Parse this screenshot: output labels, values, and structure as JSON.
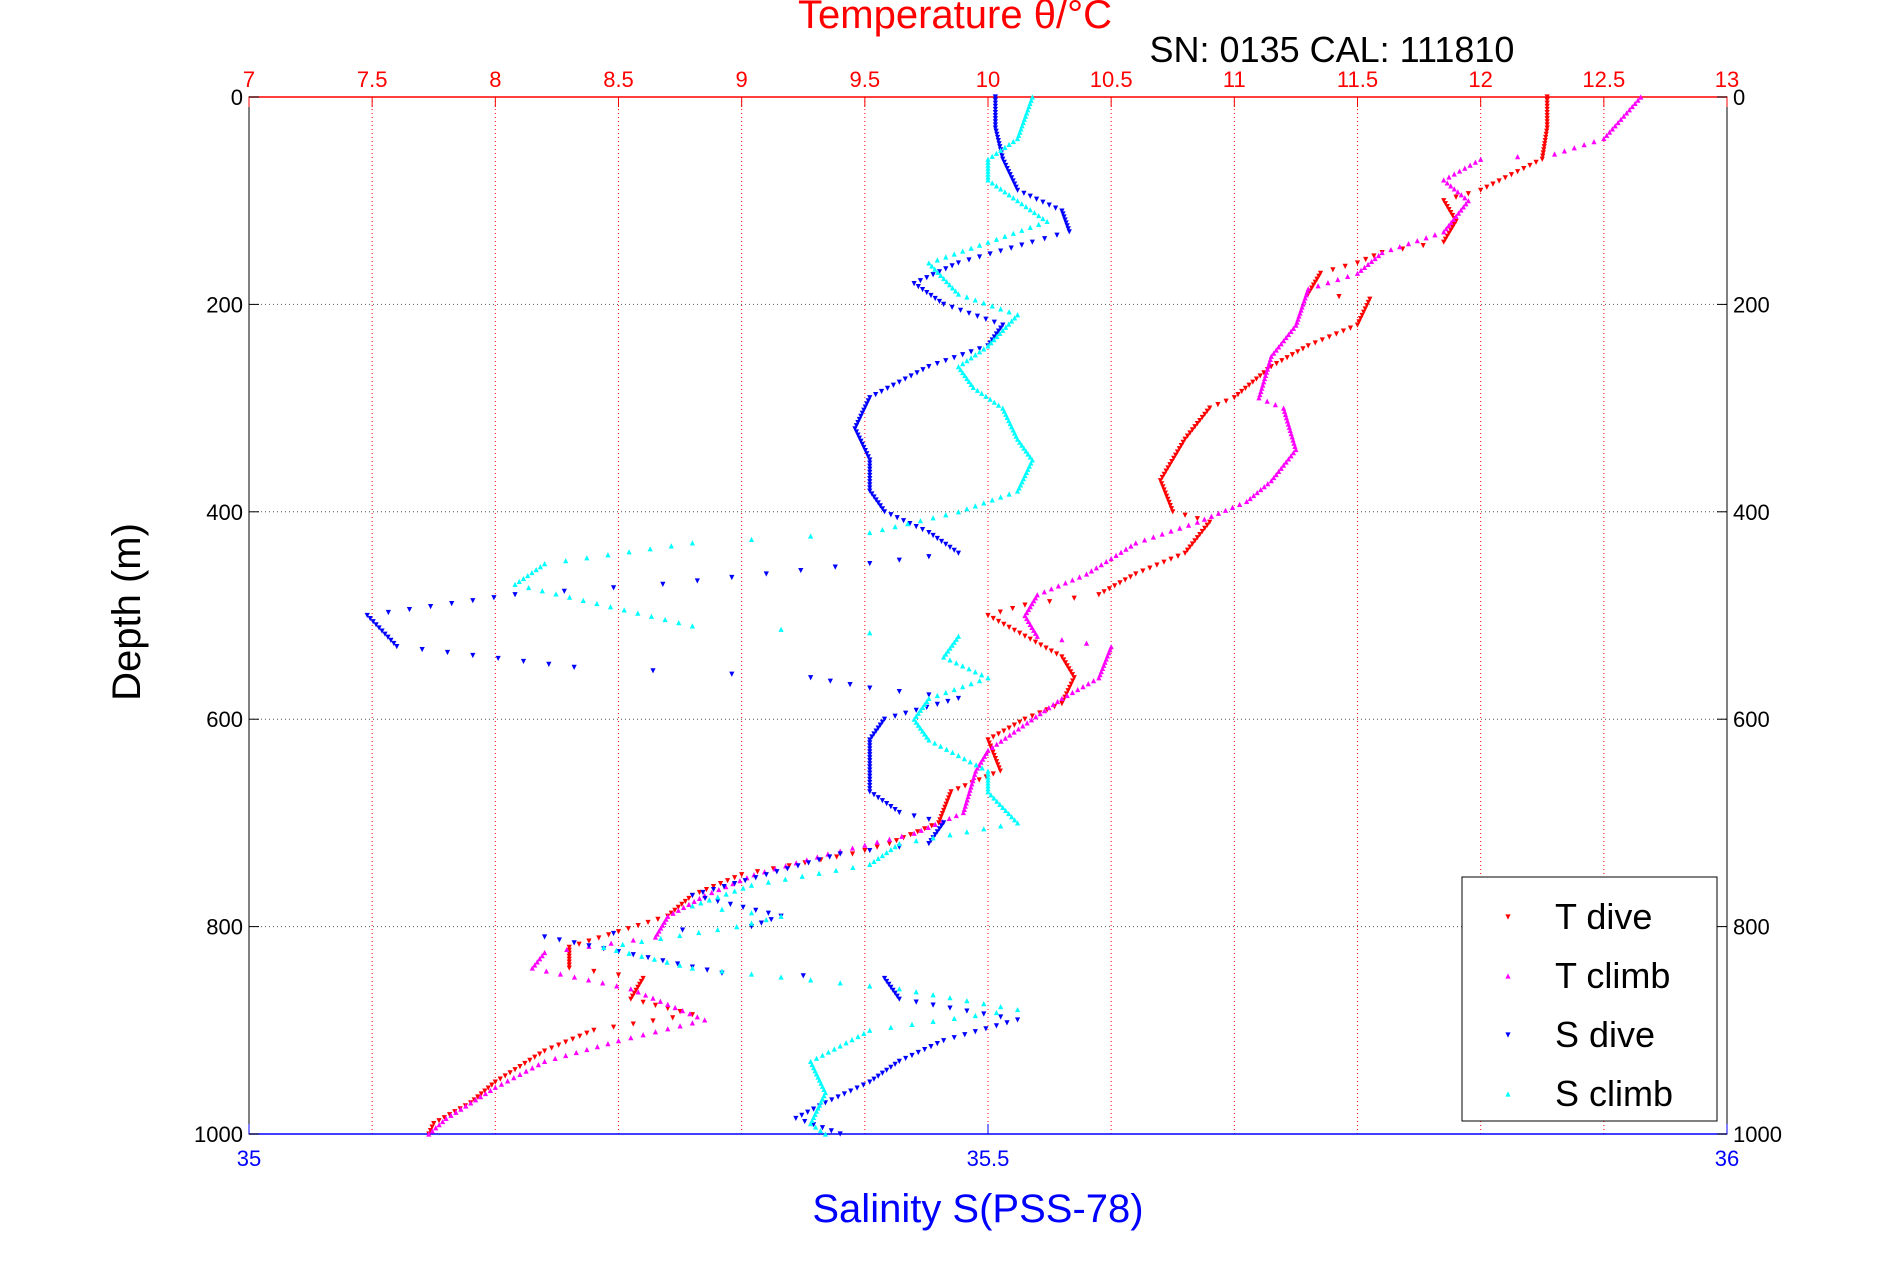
{
  "chart_data": {
    "type": "scatter",
    "title": "Temperature θ/°C",
    "subtitle": "SN: 0135  CAL: 111810",
    "x_top_label": "Temperature θ/°C",
    "x_bottom_label": "Salinity S(PSS-78)",
    "ylabel": "Depth (m)",
    "x_top_lim": [
      7,
      13
    ],
    "x_top_ticks": [
      "7",
      "7.5",
      "8",
      "8.5",
      "9",
      "9.5",
      "10",
      "10.5",
      "11",
      "11.5",
      "12",
      "12.5",
      "13"
    ],
    "x_bottom_lim": [
      35,
      36
    ],
    "x_bottom_ticks": [
      "35",
      "35.5",
      "36"
    ],
    "ylim": [
      0,
      1000
    ],
    "y_reversed": true,
    "y_ticks": [
      "0",
      "200",
      "400",
      "600",
      "800",
      "1000"
    ],
    "grid": true,
    "legend_position": "bottom-right",
    "colors": {
      "t_dive": "#ff0000",
      "t_climb": "#ff00ff",
      "s_dive": "#0000ff",
      "s_climb": "#00ffff",
      "top_axis": "#ff0000",
      "bottom_axis": "#0000ff"
    },
    "series": [
      {
        "name": "T dive",
        "axis": "temperature",
        "marker": "triangle-down",
        "points": [
          [
            12.27,
            0
          ],
          [
            12.27,
            30
          ],
          [
            12.25,
            60
          ],
          [
            12.0,
            90
          ],
          [
            11.85,
            100
          ],
          [
            11.9,
            120
          ],
          [
            11.85,
            140
          ],
          [
            11.6,
            150
          ],
          [
            11.5,
            160
          ],
          [
            11.35,
            170
          ],
          [
            11.3,
            190
          ],
          [
            11.55,
            195
          ],
          [
            11.5,
            220
          ],
          [
            11.3,
            240
          ],
          [
            11.15,
            260
          ],
          [
            11.0,
            290
          ],
          [
            10.9,
            300
          ],
          [
            10.8,
            330
          ],
          [
            10.7,
            370
          ],
          [
            10.75,
            400
          ],
          [
            10.9,
            410
          ],
          [
            10.8,
            440
          ],
          [
            10.6,
            460
          ],
          [
            10.45,
            480
          ],
          [
            10.15,
            490
          ],
          [
            10.0,
            500
          ],
          [
            10.15,
            520
          ],
          [
            10.3,
            540
          ],
          [
            10.35,
            560
          ],
          [
            10.3,
            585
          ],
          [
            10.15,
            600
          ],
          [
            10.0,
            620
          ],
          [
            10.05,
            650
          ],
          [
            9.85,
            670
          ],
          [
            9.8,
            700
          ],
          [
            9.6,
            720
          ],
          [
            9.45,
            730
          ],
          [
            9.0,
            750
          ],
          [
            8.8,
            770
          ],
          [
            8.7,
            790
          ],
          [
            8.3,
            820
          ],
          [
            8.3,
            840
          ],
          [
            8.6,
            850
          ],
          [
            8.55,
            870
          ],
          [
            8.8,
            885
          ],
          [
            8.4,
            900
          ],
          [
            8.2,
            920
          ],
          [
            8.0,
            950
          ],
          [
            7.9,
            970
          ],
          [
            7.75,
            990
          ],
          [
            7.73,
            1000
          ]
        ]
      },
      {
        "name": "T climb",
        "axis": "temperature",
        "marker": "triangle-up",
        "points": [
          [
            12.65,
            0
          ],
          [
            12.5,
            40
          ],
          [
            12.3,
            55
          ],
          [
            12.0,
            60
          ],
          [
            11.85,
            80
          ],
          [
            11.95,
            100
          ],
          [
            11.85,
            130
          ],
          [
            11.6,
            150
          ],
          [
            11.5,
            170
          ],
          [
            11.3,
            185
          ],
          [
            11.25,
            220
          ],
          [
            11.15,
            250
          ],
          [
            11.1,
            290
          ],
          [
            11.2,
            300
          ],
          [
            11.25,
            340
          ],
          [
            11.15,
            370
          ],
          [
            11.05,
            390
          ],
          [
            10.85,
            410
          ],
          [
            10.6,
            430
          ],
          [
            10.4,
            460
          ],
          [
            10.2,
            480
          ],
          [
            10.15,
            500
          ],
          [
            10.2,
            520
          ],
          [
            10.5,
            530
          ],
          [
            10.45,
            560
          ],
          [
            10.3,
            580
          ],
          [
            10.0,
            630
          ],
          [
            9.95,
            650
          ],
          [
            9.9,
            690
          ],
          [
            9.7,
            710
          ],
          [
            9.35,
            730
          ],
          [
            9.05,
            750
          ],
          [
            8.85,
            770
          ],
          [
            8.7,
            790
          ],
          [
            8.65,
            810
          ],
          [
            8.2,
            825
          ],
          [
            8.15,
            840
          ],
          [
            8.55,
            860
          ],
          [
            8.85,
            890
          ],
          [
            8.5,
            910
          ],
          [
            8.2,
            930
          ],
          [
            8.0,
            955
          ],
          [
            7.8,
            985
          ],
          [
            7.73,
            1000
          ]
        ]
      },
      {
        "name": "S dive",
        "axis": "salinity",
        "marker": "triangle-down",
        "points": [
          [
            35.505,
            0
          ],
          [
            35.505,
            30
          ],
          [
            35.51,
            60
          ],
          [
            35.52,
            90
          ],
          [
            35.55,
            110
          ],
          [
            35.555,
            130
          ],
          [
            35.53,
            140
          ],
          [
            35.48,
            160
          ],
          [
            35.45,
            180
          ],
          [
            35.47,
            200
          ],
          [
            35.51,
            220
          ],
          [
            35.5,
            240
          ],
          [
            35.46,
            260
          ],
          [
            35.42,
            290
          ],
          [
            35.41,
            320
          ],
          [
            35.42,
            350
          ],
          [
            35.42,
            380
          ],
          [
            35.43,
            400
          ],
          [
            35.46,
            420
          ],
          [
            35.48,
            440
          ],
          [
            35.42,
            450
          ],
          [
            35.35,
            460
          ],
          [
            35.28,
            470
          ],
          [
            35.18,
            480
          ],
          [
            35.08,
            500
          ],
          [
            35.1,
            530
          ],
          [
            35.22,
            550
          ],
          [
            35.38,
            560
          ],
          [
            35.42,
            570
          ],
          [
            35.48,
            580
          ],
          [
            35.43,
            600
          ],
          [
            35.42,
            620
          ],
          [
            35.42,
            640
          ],
          [
            35.42,
            670
          ],
          [
            35.44,
            690
          ],
          [
            35.47,
            700
          ],
          [
            35.46,
            720
          ],
          [
            35.4,
            730
          ],
          [
            35.35,
            750
          ],
          [
            35.3,
            770
          ],
          [
            35.36,
            790
          ],
          [
            35.34,
            800
          ],
          [
            35.2,
            810
          ],
          [
            35.27,
            830
          ],
          [
            35.32,
            845
          ],
          [
            35.43,
            850
          ],
          [
            35.44,
            870
          ],
          [
            35.52,
            890
          ],
          [
            35.47,
            910
          ],
          [
            35.44,
            930
          ],
          [
            35.42,
            950
          ],
          [
            35.39,
            970
          ],
          [
            35.37,
            985
          ],
          [
            35.4,
            1000
          ]
        ]
      },
      {
        "name": "S climb",
        "axis": "salinity",
        "marker": "triangle-up",
        "points": [
          [
            35.53,
            0
          ],
          [
            35.52,
            40
          ],
          [
            35.5,
            60
          ],
          [
            35.5,
            80
          ],
          [
            35.52,
            100
          ],
          [
            35.54,
            120
          ],
          [
            35.5,
            140
          ],
          [
            35.46,
            160
          ],
          [
            35.48,
            190
          ],
          [
            35.52,
            210
          ],
          [
            35.5,
            240
          ],
          [
            35.48,
            260
          ],
          [
            35.49,
            280
          ],
          [
            35.51,
            300
          ],
          [
            35.52,
            330
          ],
          [
            35.53,
            350
          ],
          [
            35.52,
            380
          ],
          [
            35.48,
            400
          ],
          [
            35.42,
            420
          ],
          [
            35.3,
            430
          ],
          [
            35.2,
            450
          ],
          [
            35.18,
            470
          ],
          [
            35.3,
            510
          ],
          [
            35.48,
            520
          ],
          [
            35.47,
            540
          ],
          [
            35.5,
            560
          ],
          [
            35.46,
            580
          ],
          [
            35.45,
            600
          ],
          [
            35.46,
            620
          ],
          [
            35.5,
            650
          ],
          [
            35.5,
            670
          ],
          [
            35.52,
            700
          ],
          [
            35.44,
            720
          ],
          [
            35.42,
            740
          ],
          [
            35.34,
            760
          ],
          [
            35.3,
            780
          ],
          [
            35.36,
            790
          ],
          [
            35.33,
            800
          ],
          [
            35.24,
            820
          ],
          [
            35.3,
            840
          ],
          [
            35.44,
            860
          ],
          [
            35.52,
            880
          ],
          [
            35.42,
            900
          ],
          [
            35.38,
            930
          ],
          [
            35.39,
            960
          ],
          [
            35.38,
            990
          ],
          [
            35.39,
            1000
          ]
        ]
      }
    ],
    "legend": [
      {
        "label": "T dive",
        "color": "#ff0000"
      },
      {
        "label": "T climb",
        "color": "#ff00ff"
      },
      {
        "label": "S dive",
        "color": "#0000ff"
      },
      {
        "label": "S climb",
        "color": "#00ffff"
      }
    ]
  }
}
